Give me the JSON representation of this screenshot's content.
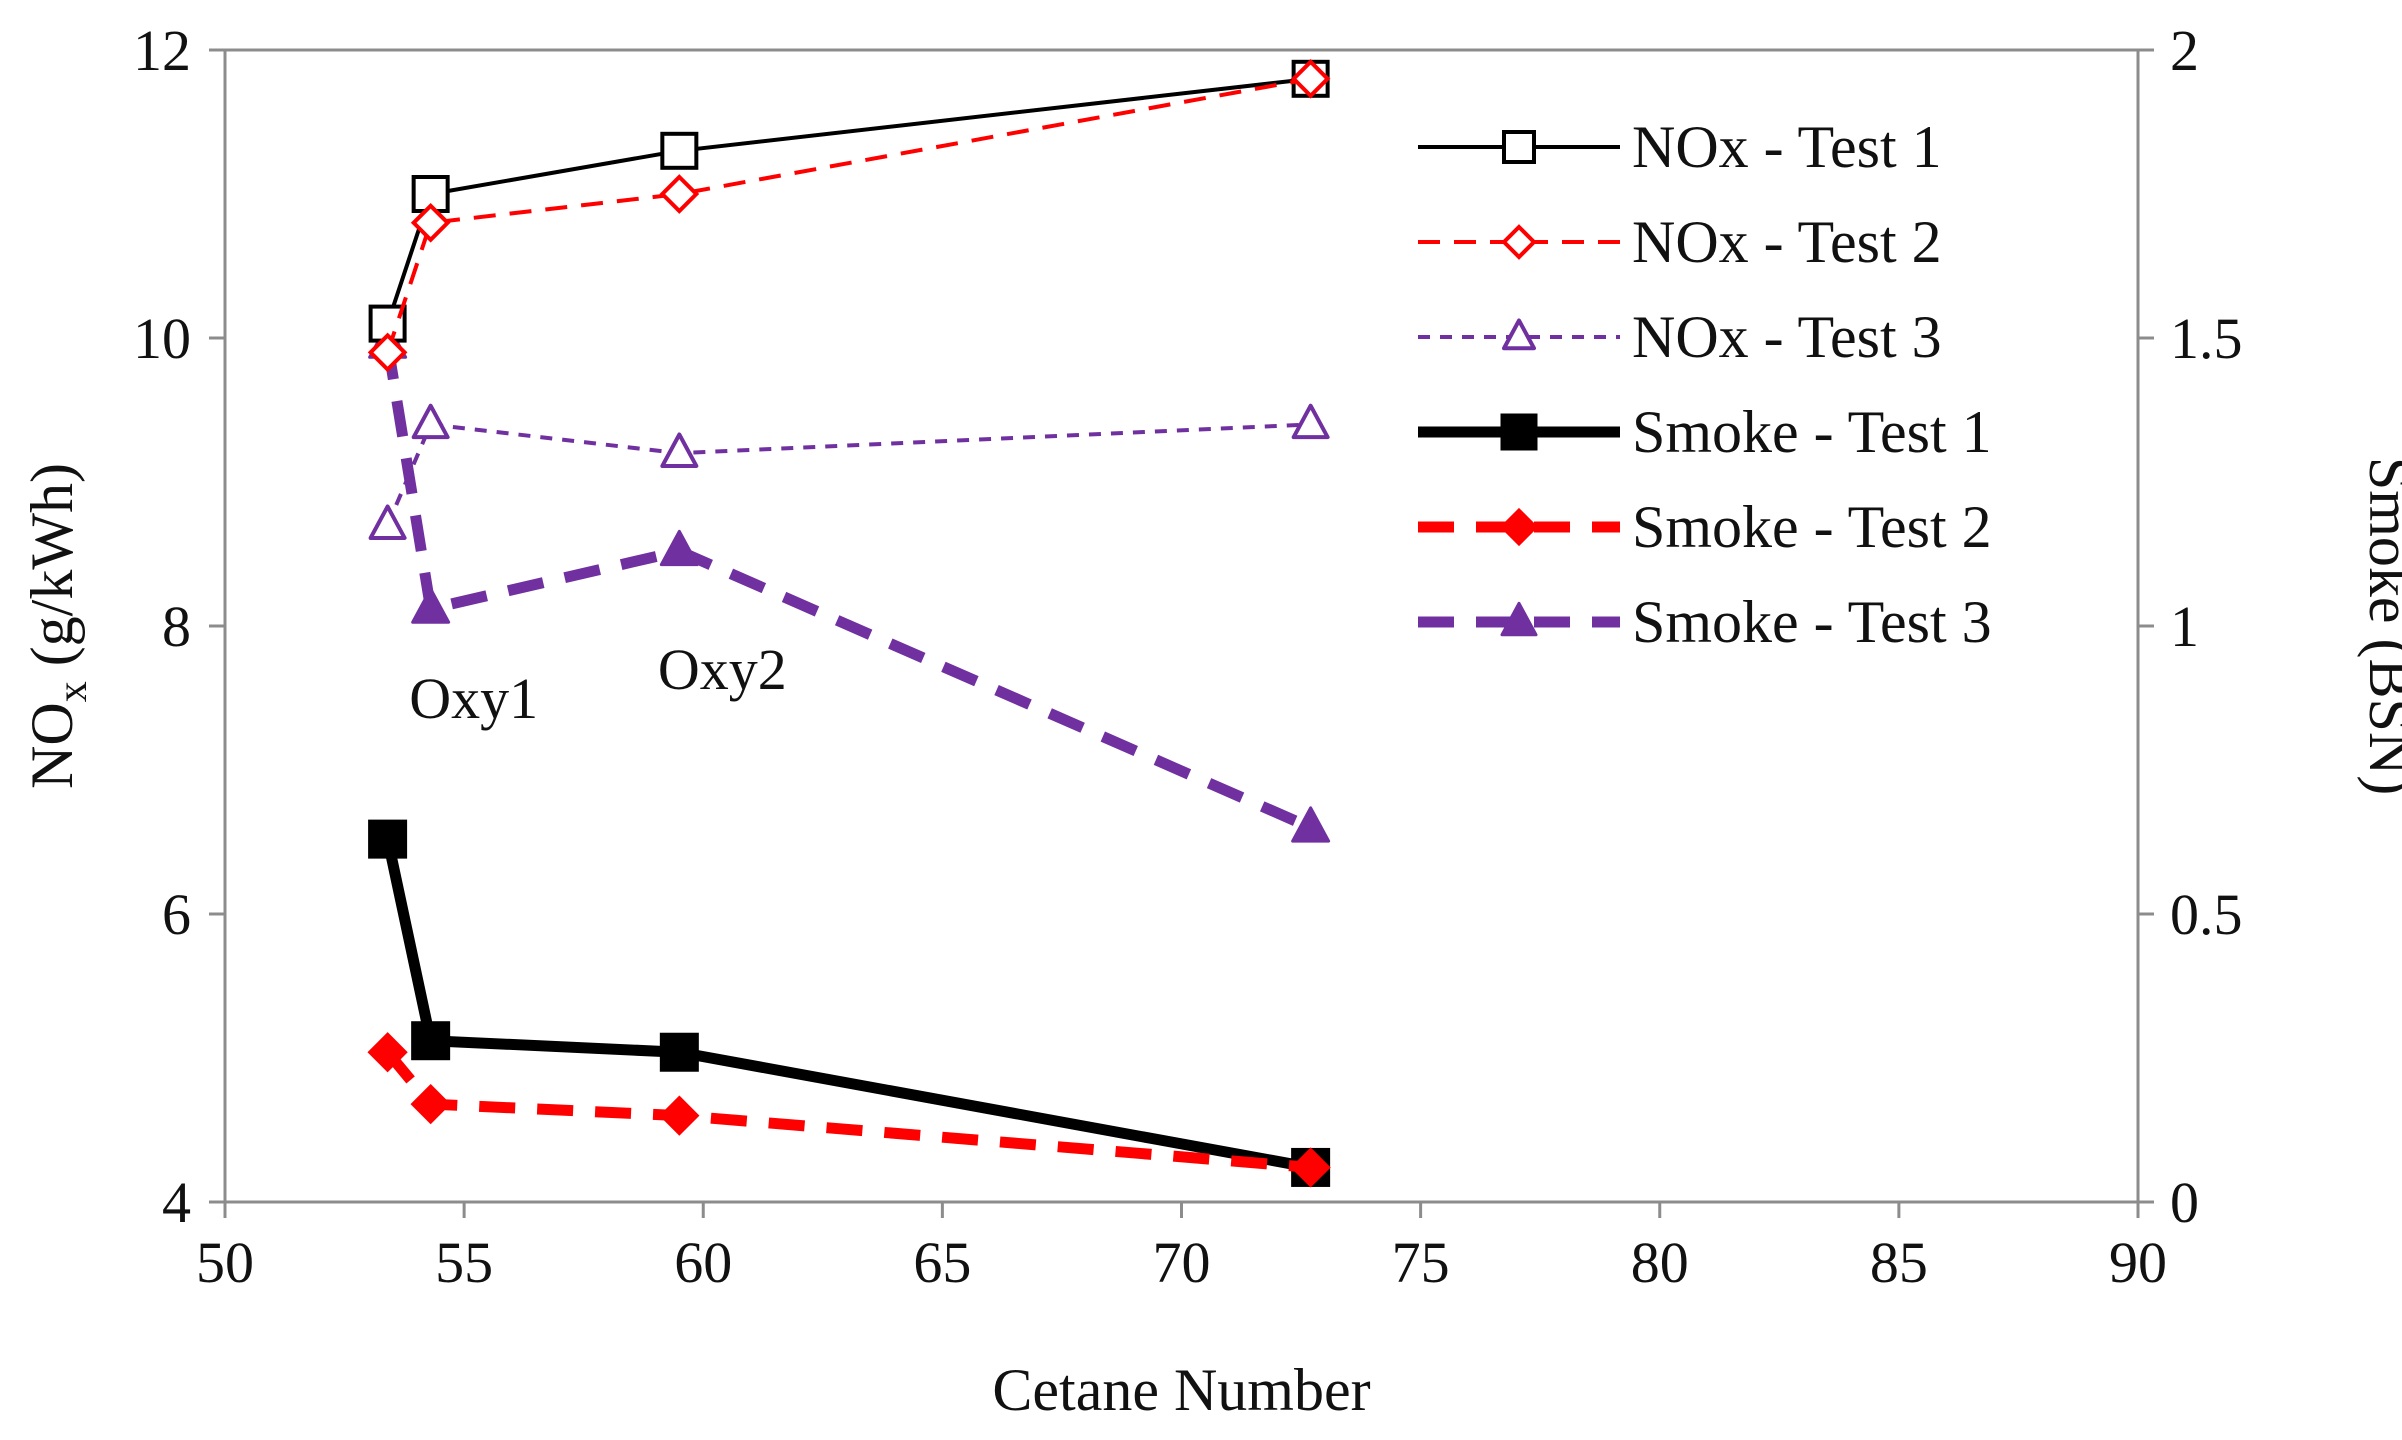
{
  "chart_data": {
    "type": "line",
    "title": "",
    "xlabel": "Cetane Number",
    "ylabel": {
      "main": "NO",
      "sub": "x",
      "unit": " (g/kWh)"
    },
    "y2label": "Smoke (BSN)",
    "xlim": [
      50,
      90
    ],
    "ylim": [
      4,
      12
    ],
    "y2lim": [
      0,
      2
    ],
    "xticks": [
      "50",
      "55",
      "60",
      "65",
      "70",
      "75",
      "80",
      "85",
      "90"
    ],
    "yticks": [
      "4",
      "6",
      "8",
      "10",
      "12"
    ],
    "y2ticks": [
      "0",
      "0.5",
      "1",
      "1.5",
      "2"
    ],
    "grid": false,
    "legend_position": "top-right",
    "annotations": [
      {
        "text": "Oxy1",
        "x": 55.2,
        "y": 7.5
      },
      {
        "text": "Oxy2",
        "x": 60.4,
        "y": 7.7
      }
    ],
    "series": [
      {
        "name": "NOx - Test 1",
        "axis": "left",
        "x": [
          53.4,
          54.3,
          59.5,
          72.7
        ],
        "y": [
          10.1,
          11.0,
          11.3,
          11.8
        ],
        "color": "#000000",
        "dash": "",
        "width": 4,
        "marker": "square",
        "filled": false
      },
      {
        "name": "NOx - Test 2",
        "axis": "left",
        "x": [
          53.4,
          54.3,
          59.5,
          72.7
        ],
        "y": [
          9.9,
          10.8,
          11.0,
          11.8
        ],
        "color": "#ff0000",
        "dash": "22,14",
        "width": 4,
        "marker": "diamond",
        "filled": false
      },
      {
        "name": "NOx - Test 3",
        "axis": "left",
        "x": [
          53.4,
          54.3,
          59.5,
          72.7
        ],
        "y": [
          8.7,
          9.4,
          9.2,
          9.4
        ],
        "color": "#7030a0",
        "dash": "12,10",
        "width": 4,
        "marker": "triangle",
        "filled": false
      },
      {
        "name": "Smoke - Test 1",
        "axis": "right",
        "x": [
          53.4,
          54.3,
          59.5,
          72.7
        ],
        "y": [
          0.63,
          0.28,
          0.26,
          0.06
        ],
        "color": "#000000",
        "dash": "",
        "width": 11,
        "marker": "square",
        "filled": true
      },
      {
        "name": "Smoke - Test 2",
        "axis": "right",
        "x": [
          53.4,
          54.3,
          59.5,
          72.7
        ],
        "y": [
          0.26,
          0.17,
          0.15,
          0.06
        ],
        "color": "#ff0000",
        "dash": "36,22",
        "width": 11,
        "marker": "diamond",
        "filled": true
      },
      {
        "name": "Smoke - Test 3",
        "axis": "right",
        "x": [
          53.4,
          54.3,
          59.5,
          72.7
        ],
        "y": [
          1.49,
          1.03,
          1.13,
          0.65
        ],
        "color": "#7030a0",
        "dash": "36,22",
        "width": 11,
        "marker": "triangle",
        "filled": true
      }
    ]
  }
}
